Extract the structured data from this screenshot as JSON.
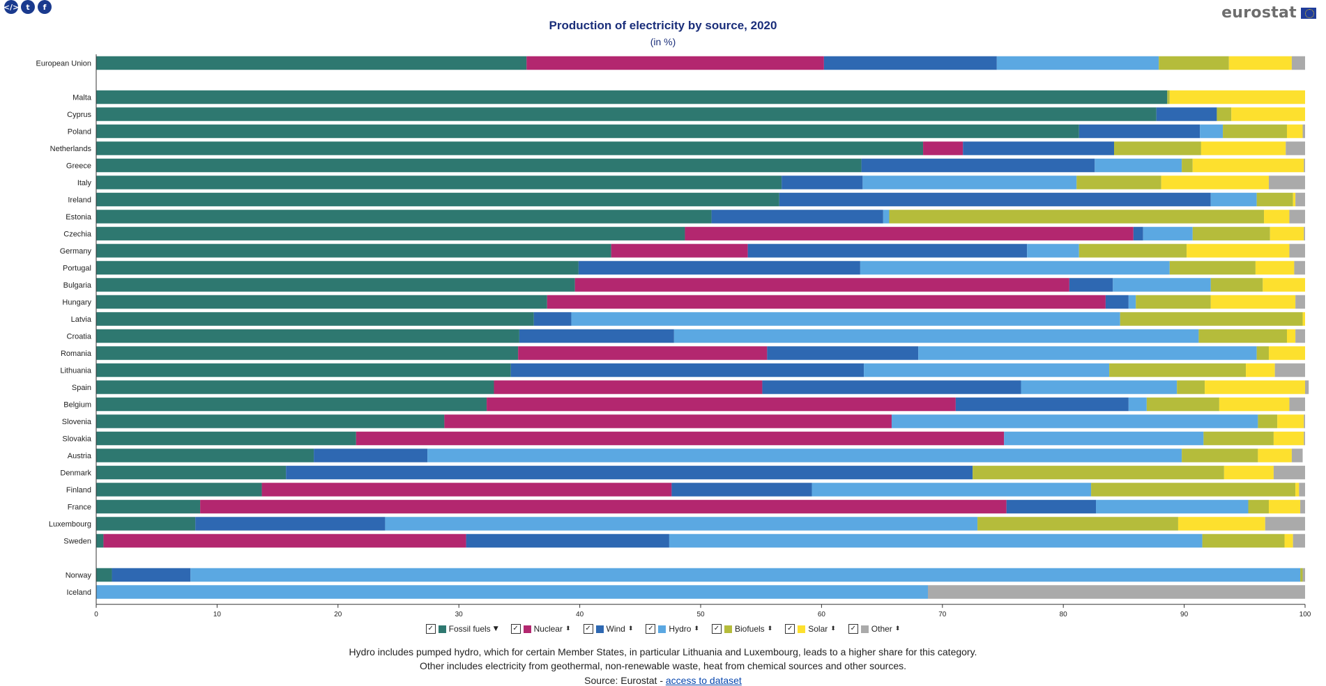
{
  "share": {
    "embed_icon": "code-icon",
    "twitter_icon": "twitter-icon",
    "facebook_icon": "facebook-icon"
  },
  "logo": {
    "text": "eurostat"
  },
  "title": "Production of electricity by source, 2020",
  "subtitle": "(in %)",
  "chart_data": {
    "type": "bar",
    "orientation": "horizontal",
    "stacked": true,
    "xlim": [
      0,
      100
    ],
    "xticks": [
      0,
      10,
      20,
      30,
      40,
      50,
      60,
      70,
      80,
      90,
      100
    ],
    "categories": [
      "European Union",
      "Malta",
      "Cyprus",
      "Poland",
      "Netherlands",
      "Greece",
      "Italy",
      "Ireland",
      "Estonia",
      "Czechia",
      "Germany",
      "Portugal",
      "Bulgaria",
      "Hungary",
      "Latvia",
      "Croatia",
      "Romania",
      "Lithuania",
      "Spain",
      "Belgium",
      "Slovenia",
      "Slovakia",
      "Austria",
      "Denmark",
      "Finland",
      "France",
      "Luxembourg",
      "Sweden",
      "Norway",
      "Iceland"
    ],
    "groups": [
      [
        0,
        0
      ],
      [
        1,
        27
      ],
      [
        28,
        29
      ]
    ],
    "series": [
      {
        "name": "Fossil fuels",
        "color": "#2e7870",
        "values": [
          35.6,
          88.6,
          87.7,
          81.3,
          68.4,
          63.3,
          56.7,
          56.5,
          50.9,
          48.7,
          42.6,
          39.9,
          39.6,
          37.3,
          36.2,
          35.0,
          34.9,
          34.3,
          32.9,
          32.3,
          28.8,
          21.5,
          18.0,
          15.7,
          13.7,
          8.6,
          8.2,
          0.6,
          1.3,
          0.0
        ]
      },
      {
        "name": "Nuclear",
        "color": "#b3276f",
        "values": [
          24.6,
          0,
          0,
          0,
          3.3,
          0,
          0,
          0,
          0,
          37.1,
          11.3,
          0,
          40.9,
          46.2,
          0,
          0,
          20.6,
          0,
          22.2,
          38.8,
          37.0,
          53.6,
          0,
          0,
          33.9,
          66.7,
          0,
          30.0,
          0,
          0
        ]
      },
      {
        "name": "Wind",
        "color": "#2e68b2",
        "values": [
          14.3,
          0,
          5.0,
          10.0,
          12.5,
          19.3,
          6.7,
          35.7,
          14.2,
          0.8,
          23.1,
          23.3,
          3.6,
          1.9,
          3.1,
          12.8,
          12.5,
          29.2,
          21.4,
          14.3,
          0,
          0,
          9.4,
          56.8,
          11.6,
          7.4,
          15.7,
          16.8,
          6.5,
          0
        ]
      },
      {
        "name": "Hydro",
        "color": "#5ba8e2",
        "values": [
          13.4,
          0,
          0,
          1.9,
          0,
          7.2,
          17.7,
          3.8,
          0.5,
          4.1,
          4.3,
          25.6,
          8.1,
          0.6,
          45.4,
          43.4,
          28.0,
          20.3,
          12.9,
          1.5,
          30.3,
          16.5,
          62.4,
          0,
          23.1,
          12.6,
          49.0,
          44.1,
          91.8,
          68.8
        ]
      },
      {
        "name": "Biofuels",
        "color": "#b5bc3b",
        "values": [
          5.8,
          0.2,
          1.2,
          5.3,
          7.2,
          0.9,
          7.0,
          3.0,
          31.0,
          6.4,
          8.9,
          7.1,
          4.3,
          6.2,
          15.1,
          7.3,
          1.0,
          11.3,
          2.3,
          6.0,
          1.6,
          5.8,
          6.3,
          20.8,
          16.9,
          1.7,
          16.6,
          6.8,
          0.2,
          0
        ]
      },
      {
        "name": "Solar",
        "color": "#fde02e",
        "values": [
          5.2,
          11.2,
          6.1,
          1.3,
          7.0,
          9.2,
          8.9,
          0.2,
          2.1,
          2.8,
          8.5,
          3.2,
          3.5,
          7.0,
          0.2,
          0.7,
          3.0,
          2.4,
          8.3,
          5.8,
          2.2,
          2.5,
          2.8,
          4.1,
          0.3,
          2.6,
          7.2,
          0.7,
          0,
          0
        ]
      },
      {
        "name": "Other",
        "color": "#aaaaaa",
        "values": [
          1.1,
          0,
          0,
          0.2,
          1.6,
          0.1,
          3.0,
          0.8,
          1.3,
          0.1,
          1.3,
          0.9,
          0,
          0.8,
          0,
          0.8,
          0,
          2.5,
          0.3,
          1.3,
          0.1,
          0.1,
          0.9,
          2.6,
          0.5,
          0.4,
          3.3,
          1.0,
          0.2,
          31.2
        ]
      }
    ]
  },
  "legend": [
    {
      "label": "Fossil fuels",
      "color": "#2e7870",
      "checked": "✓",
      "sort_icon": "▼"
    },
    {
      "label": "Nuclear",
      "color": "#b3276f",
      "checked": "✓",
      "sort_icon": "⬍"
    },
    {
      "label": "Wind",
      "color": "#2e68b2",
      "checked": "✓",
      "sort_icon": "⬍"
    },
    {
      "label": "Hydro",
      "color": "#5ba8e2",
      "checked": "✓",
      "sort_icon": "⬍"
    },
    {
      "label": "Biofuels",
      "color": "#b5bc3b",
      "checked": "✓",
      "sort_icon": "⬍"
    },
    {
      "label": "Solar",
      "color": "#fde02e",
      "checked": "✓",
      "sort_icon": "⬍"
    },
    {
      "label": "Other",
      "color": "#aaaaaa",
      "checked": "✓",
      "sort_icon": "⬍"
    }
  ],
  "notes": {
    "line1": "Hydro includes pumped hydro, which for certain Member States, in particular Lithuania and Luxembourg, leads to a higher share for this category.",
    "line2": "Other includes electricity from geothermal, non-renewable waste, heat from chemical sources and other sources."
  },
  "source": {
    "prefix": "Source: Eurostat - ",
    "link_text": "access to dataset"
  }
}
